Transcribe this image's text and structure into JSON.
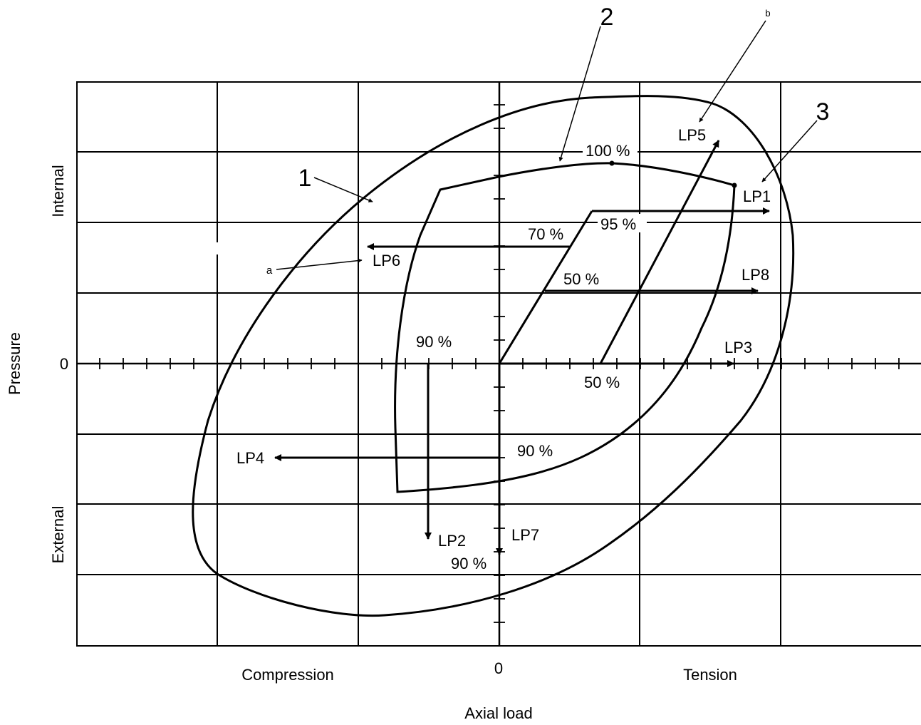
{
  "axes": {
    "x_title": "Axial load",
    "y_title": "Pressure",
    "x_left": "Compression",
    "x_zero": "0",
    "x_right": "Tension",
    "y_zero": "0",
    "y_upper": "Internal",
    "y_lower": "External"
  },
  "callouts": {
    "c1": "1",
    "c2": "2",
    "c3": "3",
    "ca": "a",
    "cb": "b"
  },
  "load_paths": {
    "lp1": "LP1",
    "lp2": "LP2",
    "lp3": "LP3",
    "lp4": "LP4",
    "lp5": "LP5",
    "lp6": "LP6",
    "lp7": "LP7",
    "lp8": "LP8"
  },
  "percent_labels": {
    "p100": "100 %",
    "p95": "95 %",
    "p70": "70 %",
    "p50_upper": "50 %",
    "p50_axis": "50 %",
    "p90_axis": "90 %",
    "p90_lp4": "90 %",
    "p90_lp7": "90 %"
  }
}
